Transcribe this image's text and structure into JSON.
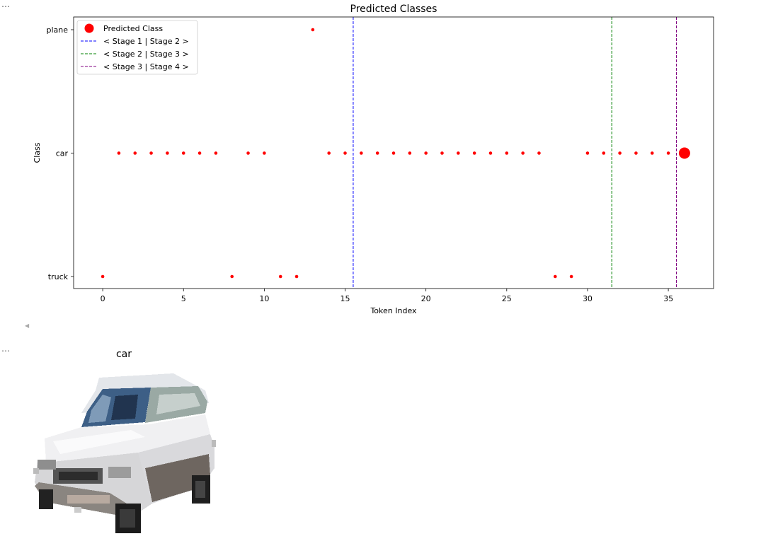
{
  "cells": {
    "output_prompt_1": "…",
    "output_prompt_2": "…"
  },
  "chart_data": {
    "type": "scatter",
    "title": "Predicted Classes",
    "xlabel": "Token Index",
    "ylabel": "Class",
    "xlim": [
      -1.8,
      37.8
    ],
    "x_ticks": [
      0,
      5,
      10,
      15,
      20,
      25,
      30,
      35
    ],
    "categories": [
      "truck",
      "car",
      "plane"
    ],
    "grid": false,
    "legend_position": "top-left",
    "series": [
      {
        "name": "Predicted Class",
        "color": "#ff0000",
        "points": [
          {
            "x": 0,
            "y": "truck"
          },
          {
            "x": 1,
            "y": "car"
          },
          {
            "x": 2,
            "y": "car"
          },
          {
            "x": 3,
            "y": "car"
          },
          {
            "x": 4,
            "y": "car"
          },
          {
            "x": 5,
            "y": "car"
          },
          {
            "x": 6,
            "y": "car"
          },
          {
            "x": 7,
            "y": "car"
          },
          {
            "x": 8,
            "y": "truck"
          },
          {
            "x": 9,
            "y": "car"
          },
          {
            "x": 10,
            "y": "car"
          },
          {
            "x": 11,
            "y": "truck"
          },
          {
            "x": 12,
            "y": "truck"
          },
          {
            "x": 13,
            "y": "plane"
          },
          {
            "x": 14,
            "y": "car"
          },
          {
            "x": 15,
            "y": "car"
          },
          {
            "x": 16,
            "y": "car"
          },
          {
            "x": 17,
            "y": "car"
          },
          {
            "x": 18,
            "y": "car"
          },
          {
            "x": 19,
            "y": "car"
          },
          {
            "x": 20,
            "y": "car"
          },
          {
            "x": 21,
            "y": "car"
          },
          {
            "x": 22,
            "y": "car"
          },
          {
            "x": 23,
            "y": "car"
          },
          {
            "x": 24,
            "y": "car"
          },
          {
            "x": 25,
            "y": "car"
          },
          {
            "x": 26,
            "y": "car"
          },
          {
            "x": 27,
            "y": "car"
          },
          {
            "x": 28,
            "y": "truck"
          },
          {
            "x": 29,
            "y": "truck"
          },
          {
            "x": 30,
            "y": "car"
          },
          {
            "x": 31,
            "y": "car"
          },
          {
            "x": 32,
            "y": "car"
          },
          {
            "x": 33,
            "y": "car"
          },
          {
            "x": 34,
            "y": "car"
          },
          {
            "x": 35,
            "y": "car"
          },
          {
            "x": 36,
            "y": "car",
            "highlight": true
          }
        ]
      }
    ],
    "vlines": [
      {
        "x": 15.5,
        "label": "< Stage 1 | Stage 2 >",
        "color": "#0000ff"
      },
      {
        "x": 31.5,
        "label": "< Stage 2 | Stage 3 >",
        "color": "#008000"
      },
      {
        "x": 35.5,
        "label": "< Stage 3 | Stage 4 >",
        "color": "#800080"
      }
    ]
  },
  "image_panel": {
    "title": "car",
    "content": "car-photo"
  }
}
